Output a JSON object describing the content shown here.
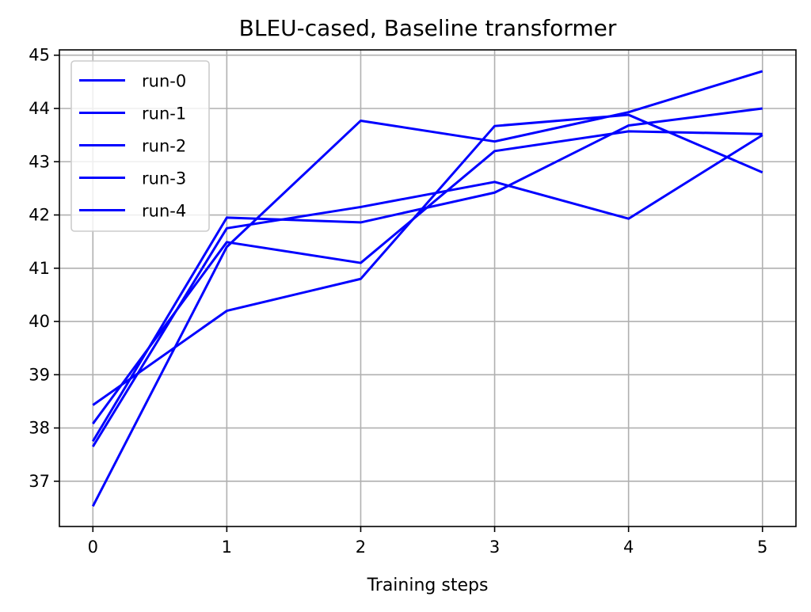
{
  "chart_data": {
    "type": "line",
    "title": "BLEU-cased, Baseline transformer",
    "xlabel": "Training steps",
    "ylabel": "",
    "x": [
      0,
      1,
      2,
      3,
      4,
      5
    ],
    "xticks": [
      "0",
      "1",
      "2",
      "3",
      "4",
      "5"
    ],
    "yticks": [
      "37",
      "38",
      "39",
      "40",
      "41",
      "42",
      "43",
      "44",
      "45"
    ],
    "xlim": [
      -0.25,
      5.25
    ],
    "ylim": [
      36.15,
      45.1
    ],
    "grid": true,
    "legend_position": "upper-left",
    "series": [
      {
        "name": "run-0",
        "color": "#0000ff",
        "values": [
          37.65,
          41.75,
          42.15,
          42.62,
          41.93,
          43.5
        ]
      },
      {
        "name": "run-1",
        "color": "#0000ff",
        "values": [
          38.43,
          40.2,
          40.8,
          43.67,
          43.88,
          42.8
        ]
      },
      {
        "name": "run-2",
        "color": "#0000ff",
        "values": [
          37.75,
          41.95,
          41.86,
          42.42,
          43.68,
          44.0
        ]
      },
      {
        "name": "run-3",
        "color": "#0000ff",
        "values": [
          38.08,
          41.49,
          41.1,
          43.2,
          43.57,
          43.52
        ]
      },
      {
        "name": "run-4",
        "color": "#0000ff",
        "values": [
          36.53,
          41.4,
          43.77,
          43.38,
          43.93,
          44.7
        ]
      }
    ]
  }
}
